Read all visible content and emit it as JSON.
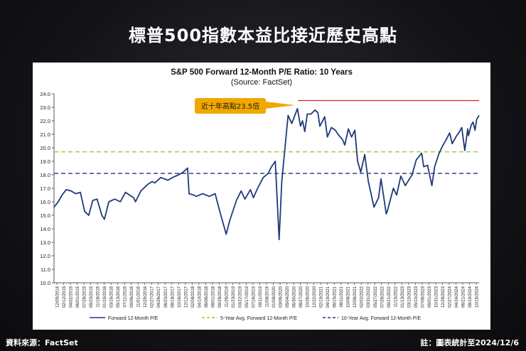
{
  "page": {
    "title": "標普500指數本益比接近歷史高點",
    "source_note": "資料來源：FactSet",
    "date_note": "註：圖表統計至2024/12/6"
  },
  "chart_data": {
    "type": "line",
    "title": "S&P 500 Forward 12-Month P/E Ratio: 10 Years",
    "subtitle": "(Source: FactSet)",
    "xlabel": "",
    "ylabel": "",
    "ylim": [
      10.0,
      24.0
    ],
    "yticks": [
      "24.0",
      "23.0",
      "22.0",
      "21.0",
      "20.0",
      "19.0",
      "18.0",
      "17.0",
      "16.0",
      "15.0",
      "14.0",
      "13.0",
      "12.0",
      "11.0",
      "10.0"
    ],
    "xlim": [
      "2014-12-05",
      "2024-12-06"
    ],
    "x_tick_labels": [
      "12/05/2014",
      "02/12/2015",
      "04/02/2015",
      "06/01/2015",
      "07/28/2015",
      "09/23/2015",
      "11/18/2015",
      "01/19/2016",
      "03/16/2016",
      "05/13/2016",
      "07/11/2016",
      "09/06/2016",
      "11/01/2016",
      "12/29/2016",
      "02/27/2017",
      "04/26/2017",
      "06/23/2017",
      "08/18/2017",
      "10/16/2017",
      "12/12/2017",
      "02/08/2018",
      "04/10/2018",
      "06/06/2018",
      "08/01/2018",
      "09/28/2018",
      "11/26/2018",
      "01/23/2019",
      "03/22/2019",
      "05/17/2019",
      "07/16/2019",
      "09/11/2019",
      "11/08/2019",
      "01/08/2020",
      "03/06/2020",
      "05/04/2020",
      "06/30/2020",
      "08/27/2020",
      "10/26/2020",
      "12/22/2020",
      "02/19/2021",
      "04/19/2021",
      "06/15/2021",
      "08/11/2021",
      "10/08/2021",
      "12/06/2021",
      "02/02/2022",
      "03/31/2022",
      "05/27/2022",
      "07/26/2022",
      "09/21/2022",
      "11/15/2022",
      "01/13/2023",
      "03/10/2023",
      "05/10/2023",
      "07/06/2023",
      "09/01/2023",
      "10/31/2023",
      "12/28/2023",
      "02/27/2024",
      "04/24/2024",
      "06/21/2024",
      "08/19/2024",
      "10/15/2024"
    ],
    "series": [
      {
        "name": "Forward 12-Month P/E",
        "color": "#1f3a7a",
        "points": [
          [
            "2014-12-05",
            15.6
          ],
          [
            "2015-01-10",
            16.0
          ],
          [
            "2015-02-12",
            16.5
          ],
          [
            "2015-03-20",
            16.9
          ],
          [
            "2015-05-01",
            16.8
          ],
          [
            "2015-06-10",
            16.6
          ],
          [
            "2015-07-20",
            16.7
          ],
          [
            "2015-08-25",
            15.3
          ],
          [
            "2015-09-29",
            15.0
          ],
          [
            "2015-11-03",
            16.1
          ],
          [
            "2015-12-10",
            16.2
          ],
          [
            "2016-01-20",
            15.0
          ],
          [
            "2016-02-11",
            14.7
          ],
          [
            "2016-03-20",
            16.0
          ],
          [
            "2016-05-10",
            16.2
          ],
          [
            "2016-06-27",
            16.0
          ],
          [
            "2016-08-10",
            16.7
          ],
          [
            "2016-10-20",
            16.3
          ],
          [
            "2016-11-04",
            16.0
          ],
          [
            "2016-12-20",
            16.8
          ],
          [
            "2017-02-20",
            17.3
          ],
          [
            "2017-03-28",
            17.5
          ],
          [
            "2017-04-20",
            17.4
          ],
          [
            "2017-06-10",
            17.8
          ],
          [
            "2017-08-10",
            17.6
          ],
          [
            "2017-09-20",
            17.8
          ],
          [
            "2017-11-10",
            18.0
          ],
          [
            "2017-12-20",
            18.2
          ],
          [
            "2018-01-26",
            18.5
          ],
          [
            "2018-02-08",
            16.6
          ],
          [
            "2018-03-20",
            16.5
          ],
          [
            "2018-04-10",
            16.4
          ],
          [
            "2018-06-06",
            16.6
          ],
          [
            "2018-08-01",
            16.4
          ],
          [
            "2018-09-20",
            16.6
          ],
          [
            "2018-10-26",
            15.4
          ],
          [
            "2018-12-24",
            13.6
          ],
          [
            "2019-01-23",
            14.6
          ],
          [
            "2019-03-22",
            16.1
          ],
          [
            "2019-05-01",
            16.8
          ],
          [
            "2019-06-03",
            16.2
          ],
          [
            "2019-07-20",
            16.9
          ],
          [
            "2019-08-15",
            16.3
          ],
          [
            "2019-09-20",
            17.0
          ],
          [
            "2019-11-08",
            17.8
          ],
          [
            "2019-12-20",
            18.1
          ],
          [
            "2020-01-17",
            18.6
          ],
          [
            "2020-02-19",
            19.0
          ],
          [
            "2020-03-23",
            13.2
          ],
          [
            "2020-04-15",
            17.5
          ],
          [
            "2020-05-04",
            19.2
          ],
          [
            "2020-06-08",
            22.4
          ],
          [
            "2020-07-10",
            21.8
          ],
          [
            "2020-08-27",
            22.9
          ],
          [
            "2020-09-23",
            21.6
          ],
          [
            "2020-10-10",
            22.0
          ],
          [
            "2020-10-30",
            21.2
          ],
          [
            "2020-11-20",
            22.5
          ],
          [
            "2020-12-22",
            22.5
          ],
          [
            "2021-01-26",
            22.8
          ],
          [
            "2021-02-19",
            22.6
          ],
          [
            "2021-03-08",
            21.6
          ],
          [
            "2021-04-19",
            22.3
          ],
          [
            "2021-05-12",
            20.8
          ],
          [
            "2021-06-15",
            21.5
          ],
          [
            "2021-07-20",
            21.3
          ],
          [
            "2021-08-11",
            21.0
          ],
          [
            "2021-09-20",
            20.6
          ],
          [
            "2021-10-08",
            20.2
          ],
          [
            "2021-11-08",
            21.4
          ],
          [
            "2021-12-06",
            20.8
          ],
          [
            "2022-01-03",
            21.3
          ],
          [
            "2022-01-27",
            19.0
          ],
          [
            "2022-02-23",
            18.2
          ],
          [
            "2022-03-29",
            19.5
          ],
          [
            "2022-04-29",
            17.5
          ],
          [
            "2022-05-20",
            16.7
          ],
          [
            "2022-06-16",
            15.6
          ],
          [
            "2022-07-26",
            16.3
          ],
          [
            "2022-08-16",
            17.7
          ],
          [
            "2022-09-30",
            15.1
          ],
          [
            "2022-10-12",
            15.4
          ],
          [
            "2022-11-30",
            17.0
          ],
          [
            "2022-12-28",
            16.5
          ],
          [
            "2023-02-02",
            17.9
          ],
          [
            "2023-03-13",
            17.2
          ],
          [
            "2023-05-10",
            18.0
          ],
          [
            "2023-06-15",
            19.1
          ],
          [
            "2023-07-31",
            19.6
          ],
          [
            "2023-08-18",
            18.6
          ],
          [
            "2023-09-20",
            18.7
          ],
          [
            "2023-10-27",
            17.2
          ],
          [
            "2023-11-20",
            18.6
          ],
          [
            "2023-12-28",
            19.6
          ],
          [
            "2024-01-31",
            20.2
          ],
          [
            "2024-02-27",
            20.6
          ],
          [
            "2024-03-28",
            21.1
          ],
          [
            "2024-04-19",
            20.3
          ],
          [
            "2024-05-20",
            20.8
          ],
          [
            "2024-06-21",
            21.2
          ],
          [
            "2024-07-10",
            21.5
          ],
          [
            "2024-08-05",
            19.8
          ],
          [
            "2024-08-30",
            21.4
          ],
          [
            "2024-09-06",
            20.9
          ],
          [
            "2024-09-30",
            21.7
          ],
          [
            "2024-10-15",
            21.9
          ],
          [
            "2024-11-01",
            21.3
          ],
          [
            "2024-11-15",
            22.1
          ],
          [
            "2024-12-06",
            22.4
          ]
        ]
      },
      {
        "name": "5-Year Avg. Forward 12-Month P/E",
        "color": "#9acd32",
        "dashed": true,
        "value": 19.7
      },
      {
        "name": "10-Year Avg. Forward 12-Month P/E",
        "color": "#1f3a7a",
        "dashed": true,
        "value": 18.1
      }
    ],
    "reference_lines": [
      {
        "value": 23.5,
        "color": "#e02020",
        "start": "2020-09-01"
      }
    ],
    "annotations": [
      {
        "text": "近十年高點23.5倍",
        "x": "2020-09-01",
        "y": 23.5,
        "color": "#f0a800"
      }
    ],
    "grid": false,
    "legend": "bottom"
  }
}
